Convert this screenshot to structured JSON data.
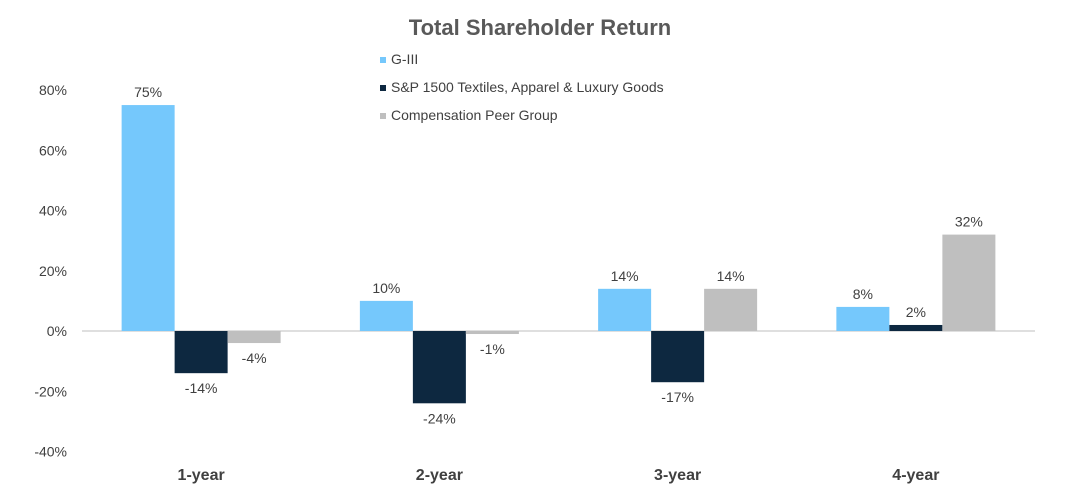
{
  "chart_data": {
    "type": "bar",
    "title": "Total Shareholder Return",
    "categories": [
      "1-year",
      "2-year",
      "3-year",
      "4-year"
    ],
    "series": [
      {
        "name": "G-III",
        "color": "#75C8FC",
        "values": [
          75,
          10,
          14,
          8
        ],
        "labels": [
          "75%",
          "10%",
          "14%",
          "8%"
        ]
      },
      {
        "name": "S&P 1500 Textiles, Apparel & Luxury Goods",
        "color": "#0D2840",
        "values": [
          -14,
          -24,
          -17,
          2
        ],
        "labels": [
          "-14%",
          "-24%",
          "-17%",
          "2%"
        ]
      },
      {
        "name": "Compensation Peer Group",
        "color": "#BFBFBF",
        "values": [
          -4,
          -1,
          14,
          32
        ],
        "labels": [
          "-4%",
          "-1%",
          "14%",
          "32%"
        ]
      }
    ],
    "yticks": [
      "80%",
      "60%",
      "40%",
      "20%",
      "0%",
      "-20%",
      "-40%"
    ],
    "ylim": [
      -40,
      80
    ],
    "grid": false,
    "legend_position": "top-center"
  }
}
